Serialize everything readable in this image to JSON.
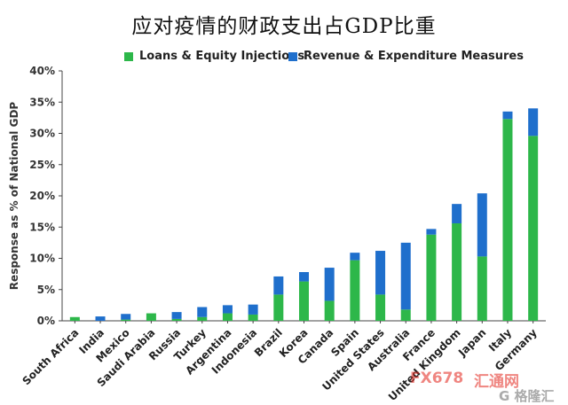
{
  "chart_data": {
    "type": "bar",
    "stacked": true,
    "title": "应对疫情的财政支出占GDP比重",
    "ylabel": "Response as % of National GDP",
    "xlabel": "",
    "ylim": [
      0,
      40
    ],
    "yticks": [
      "0%",
      "5%",
      "10%",
      "15%",
      "20%",
      "25%",
      "30%",
      "35%",
      "40%"
    ],
    "grid": false,
    "legend_position": "top",
    "categories": [
      "South Africa",
      "India",
      "Mexico",
      "Saudi Arabia",
      "Russia",
      "Turkey",
      "Argentina",
      "Indonesia",
      "Brazil",
      "Korea",
      "Canada",
      "Spain",
      "United States",
      "Australia",
      "France",
      "United Kingdom",
      "Japan",
      "Italy",
      "Germany"
    ],
    "series": [
      {
        "name": "Loans & Equity Injections",
        "color": "#2db74a",
        "values": [
          0.6,
          0.0,
          0.2,
          1.2,
          0.3,
          0.6,
          1.2,
          1.0,
          4.2,
          6.3,
          3.2,
          9.7,
          4.2,
          1.8,
          13.8,
          15.6,
          10.3,
          32.3,
          29.6
        ]
      },
      {
        "name": "Revenue & Expenditure Measures",
        "color": "#1f6fcc",
        "values": [
          0.0,
          0.7,
          0.9,
          0.0,
          1.1,
          1.6,
          1.3,
          1.6,
          2.9,
          1.5,
          5.3,
          1.2,
          7.0,
          10.7,
          0.9,
          3.1,
          10.1,
          1.2,
          4.4
        ]
      }
    ]
  },
  "watermark": {
    "text_left": "FX678",
    "text_right": "汇通网",
    "text_bottom": "G 格隆汇",
    "color": "#e2231a"
  }
}
